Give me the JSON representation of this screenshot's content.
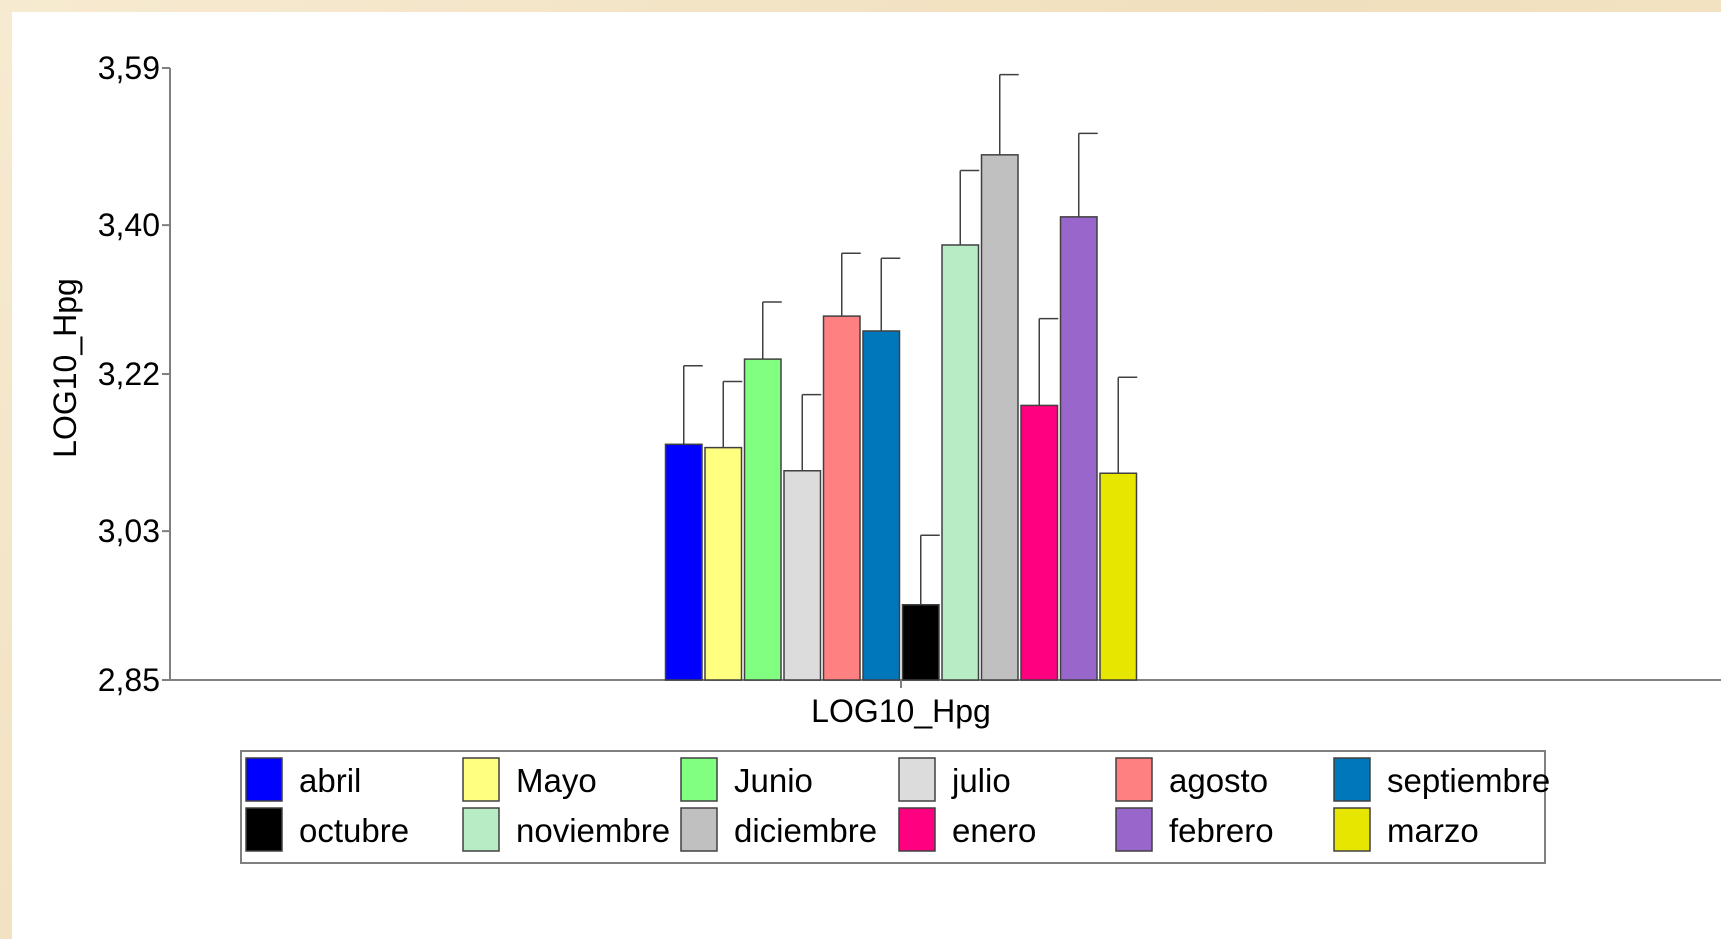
{
  "chart_data": {
    "type": "bar",
    "ylabel": "LOG10_Hpg",
    "xlabel": "LOG10_Hpg",
    "ylim": [
      2.85,
      3.59
    ],
    "yticks": [
      "3,59",
      "3,40",
      "3,22",
      "3,03",
      "2,85"
    ],
    "ytick_values": [
      3.59,
      3.4,
      3.22,
      3.03,
      2.85
    ],
    "categories": [
      "LOG10_Hpg"
    ],
    "grid": false,
    "legend_position": "bottom",
    "series": [
      {
        "name": "abril",
        "values": [
          3.135
        ],
        "error": [
          0.095
        ],
        "color": "#0000ff"
      },
      {
        "name": "Mayo",
        "values": [
          3.131
        ],
        "error": [
          0.08
        ],
        "color": "#ffff80"
      },
      {
        "name": "Junio",
        "values": [
          3.238
        ],
        "error": [
          0.069
        ],
        "color": "#80ff80"
      },
      {
        "name": "julio",
        "values": [
          3.103
        ],
        "error": [
          0.092
        ],
        "color": "#dcdcdc"
      },
      {
        "name": "agosto",
        "values": [
          3.29
        ],
        "error": [
          0.076
        ],
        "color": "#ff8080"
      },
      {
        "name": "septiembre",
        "values": [
          3.272
        ],
        "error": [
          0.088
        ],
        "color": "#0077bb"
      },
      {
        "name": "octubre",
        "values": [
          2.941
        ],
        "error": [
          0.084
        ],
        "color": "#000000"
      },
      {
        "name": "noviembre",
        "values": [
          3.376
        ],
        "error": [
          0.09
        ],
        "color": "#b8ecc4"
      },
      {
        "name": "diciembre",
        "values": [
          3.485
        ],
        "error": [
          0.097
        ],
        "color": "#c0c0c0"
      },
      {
        "name": "enero",
        "values": [
          3.182
        ],
        "error": [
          0.105
        ],
        "color": "#ff0080"
      },
      {
        "name": "febrero",
        "values": [
          3.41
        ],
        "error": [
          0.101
        ],
        "color": "#9966cc"
      },
      {
        "name": "marzo",
        "values": [
          3.1
        ],
        "error": [
          0.116
        ],
        "color": "#e6e600"
      }
    ]
  },
  "colors": {
    "frame_background": "#f4e7cc",
    "plot_background": "#ffffff",
    "axis": "#808080",
    "error_bar": "#404040"
  }
}
